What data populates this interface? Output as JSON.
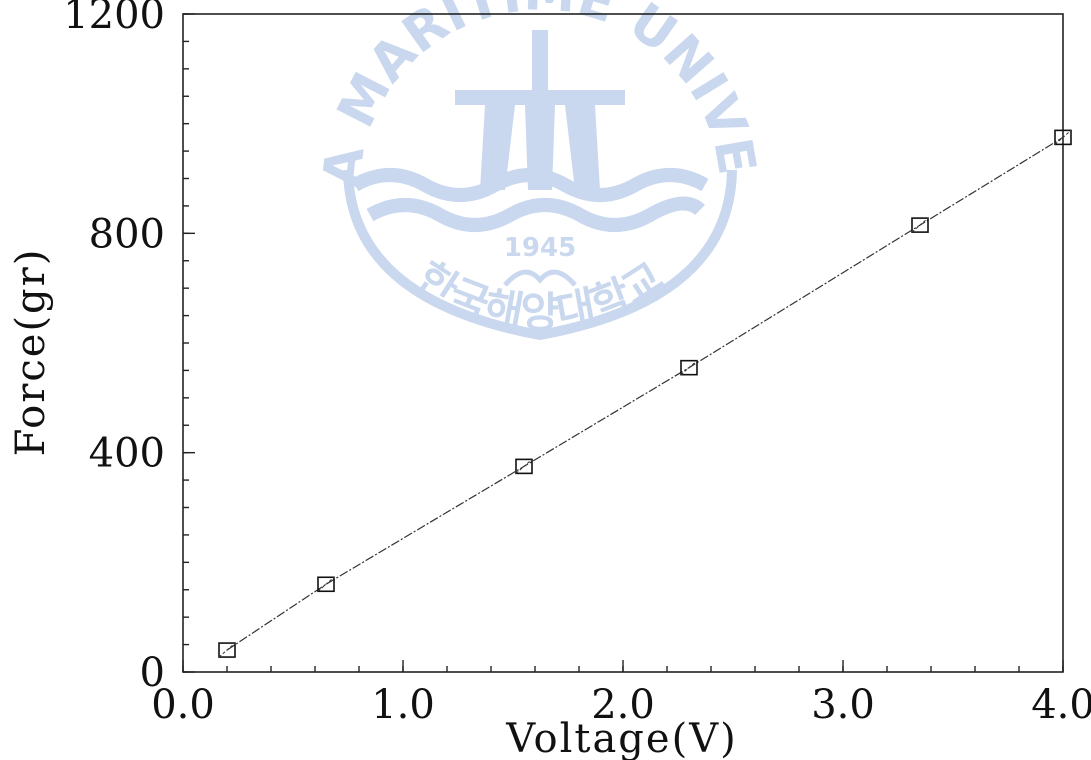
{
  "chart_data": {
    "type": "line",
    "xlabel": "Voltage(V)",
    "ylabel": "Force(gr)",
    "xlim": [
      0.0,
      4.0
    ],
    "ylim": [
      0,
      1200
    ],
    "x_ticks": [
      0.0,
      1.0,
      2.0,
      3.0,
      4.0
    ],
    "x_tick_labels": [
      "0.0",
      "1.0",
      "2.0",
      "3.0",
      "4.0"
    ],
    "y_ticks": [
      0,
      400,
      800,
      1200
    ],
    "y_tick_labels": [
      "0",
      "400",
      "800",
      "1200"
    ],
    "grid": false,
    "series": [
      {
        "marker": "open-square",
        "line_style": "dash-dot",
        "color": "#333333",
        "x": [
          0.2,
          0.65,
          1.55,
          2.3,
          3.35,
          4.0
        ],
        "y": [
          40,
          160,
          375,
          555,
          815,
          975
        ]
      }
    ]
  },
  "watermark": {
    "text": "KOREA MARITIME UNIVERSITY",
    "year": "1945",
    "korean": "한국해양대학교",
    "color": "#c9d8ee"
  }
}
